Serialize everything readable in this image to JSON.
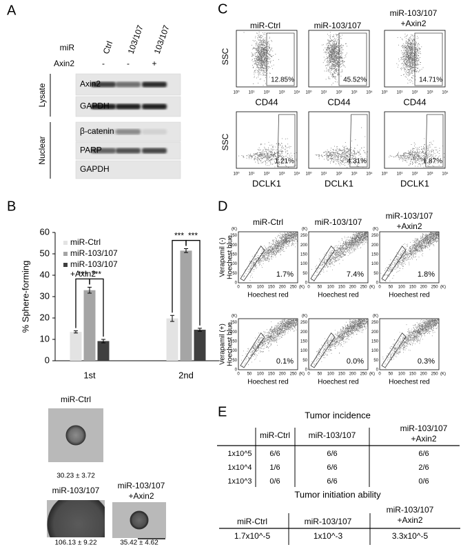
{
  "panel_labels": [
    "A",
    "B",
    "C",
    "D",
    "E"
  ],
  "panel_a": {
    "mir_label": "miR",
    "axin2_label": "Axin2",
    "lanes": [
      "Ctrl",
      "103/107",
      "103/107"
    ],
    "axin2_signs": [
      "-",
      "-",
      "+"
    ],
    "groups": [
      "Lysate",
      "Nuclear"
    ],
    "blots": [
      "Axin2",
      "GAPDH",
      "β-catenin",
      "PARP",
      "GAPDH"
    ]
  },
  "chart_data": {
    "type": "bar",
    "y_label": "% Sphere-forming",
    "categories": [
      "1st",
      "2nd"
    ],
    "series": [
      {
        "name": "miR-Ctrl",
        "color": "#e3e3e3",
        "values": [
          13.5,
          19.8
        ],
        "errors": [
          0.5,
          1.4
        ]
      },
      {
        "name": "miR-103/107",
        "color": "#a5a5a5",
        "values": [
          33,
          51.5
        ],
        "errors": [
          1.4,
          0.9
        ]
      },
      {
        "name": "miR-103/107\n+Axin2",
        "color": "#3f3f3f",
        "values": [
          9.2,
          14.5
        ],
        "errors": [
          0.8,
          0.7
        ]
      }
    ],
    "ylim": [
      0,
      60
    ],
    "yticks": [
      0,
      10,
      20,
      30,
      40,
      50,
      60
    ],
    "significance": "***",
    "legend": "upper-left"
  },
  "panel_b_images": [
    {
      "title": "miR-Ctrl",
      "caption": "30.23 ± 3.72"
    },
    {
      "title": "miR-103/107",
      "caption": "106.13 ± 9.22"
    },
    {
      "title": "miR-103/107\n+Axin2",
      "caption": "35.42 ± 4.62"
    }
  ],
  "panel_c": {
    "columns": [
      "miR-Ctrl",
      "miR-103/107",
      "miR-103/107\n+Axin2"
    ],
    "y_label": "SSC",
    "x_labels": [
      "CD44",
      "DCLK1"
    ],
    "ticks": [
      "10⁰",
      "10¹",
      "10²",
      "10³",
      "10⁴"
    ],
    "percentages": [
      [
        "12.85%",
        "45.52%",
        "14.71%"
      ],
      [
        "1.21%",
        "4.31%",
        "1.87%"
      ]
    ]
  },
  "panel_d": {
    "columns": [
      "miR-Ctrl",
      "miR-103/107",
      "miR-103/107\n+Axin2"
    ],
    "row_labels": [
      "Verapamil (-)",
      "Verapamil (+)"
    ],
    "y_label": "Hoechest blue",
    "x_label": "Hoechest red",
    "ticks": [
      "0",
      "50",
      "100",
      "150",
      "200",
      "250"
    ],
    "unit": "(K)",
    "percentages": [
      [
        "1.7%",
        "7.4%",
        "1.8%"
      ],
      [
        "0.1%",
        "0.0%",
        "0.3%"
      ]
    ]
  },
  "panel_e": {
    "incidence_title": "Tumor incidence",
    "incidence_header": [
      "miR-Ctrl",
      "miR-103/107",
      "miR-103/107\n+Axin2"
    ],
    "incidence_rows": [
      [
        "1x10^5",
        "6/6",
        "6/6",
        "6/6"
      ],
      [
        "1x10^4",
        "1/6",
        "6/6",
        "2/6"
      ],
      [
        "1x10^3",
        "0/6",
        "6/6",
        "0/6"
      ]
    ],
    "initiation_title": "Tumor initiation ability",
    "initiation_header": [
      "miR-Ctrl",
      "miR-103/107",
      "miR-103/107\n+Axin2"
    ],
    "initiation_row": [
      "1.7x10^-5",
      "1x10^-3",
      "3.3x10^-5"
    ]
  }
}
